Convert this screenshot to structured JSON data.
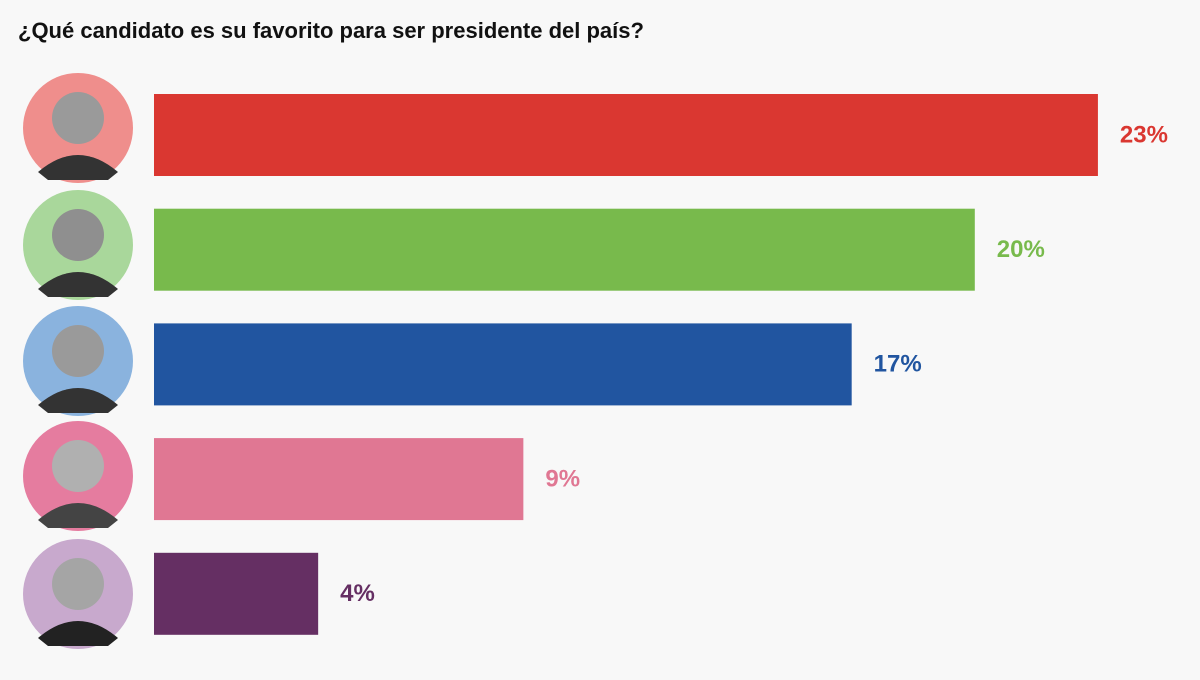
{
  "chart_data": {
    "type": "barh",
    "title": "¿Qué candidato es su favorito para ser presidente del país?",
    "categories": [
      null,
      null,
      null,
      null,
      null
    ],
    "values": [
      23,
      20,
      17,
      9,
      4
    ],
    "value_labels": [
      "23%",
      "20%",
      "17%",
      "9%",
      "4%"
    ],
    "colors": [
      "#da3731",
      "#78ba4c",
      "#2155a0",
      "#e07793",
      "#652f63"
    ]
  }
}
